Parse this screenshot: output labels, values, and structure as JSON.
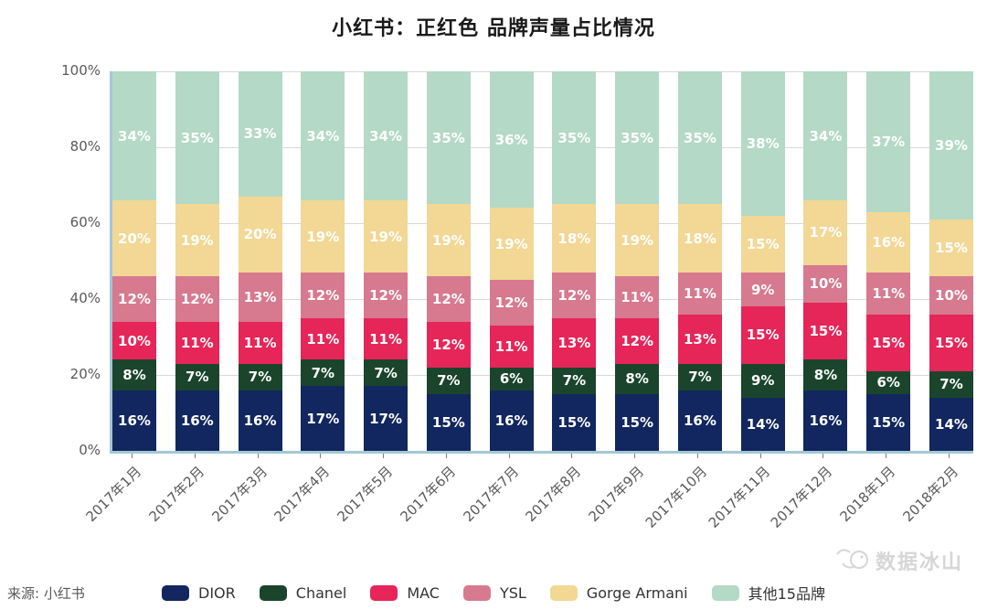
{
  "title": "小红书：正红色 品牌声量占比情况",
  "source": "来源: 小红书",
  "watermark": "数据冰山",
  "colors": {
    "axis": "#a3c7d6",
    "gridline": "#d9d9d9",
    "tick_text": "#595959",
    "segment_label": "#ffffff"
  },
  "chart_data": {
    "type": "bar",
    "stacked": true,
    "percent_total": true,
    "title": "小红书：正红色 品牌声量占比情况",
    "xlabel": "",
    "ylabel": "",
    "ylim": [
      0,
      100
    ],
    "grid": true,
    "legend_position": "bottom",
    "y_ticks": [
      "0%",
      "20%",
      "40%",
      "60%",
      "80%",
      "100%"
    ],
    "categories": [
      "2017年1月",
      "2017年2月",
      "2017年3月",
      "2017年4月",
      "2017年5月",
      "2017年6月",
      "2017年7月",
      "2017年8月",
      "2017年9月",
      "2017年10月",
      "2017年11月",
      "2017年12月",
      "2018年1月",
      "2018年2月"
    ],
    "series": [
      {
        "name": "DIOR",
        "color": "#12275f",
        "values": [
          16,
          16,
          16,
          17,
          17,
          15,
          16,
          15,
          15,
          16,
          14,
          16,
          15,
          14
        ]
      },
      {
        "name": "Chanel",
        "color": "#1a452c",
        "values": [
          8,
          7,
          7,
          7,
          7,
          7,
          6,
          7,
          8,
          7,
          9,
          8,
          6,
          7
        ]
      },
      {
        "name": "MAC",
        "color": "#e62558",
        "values": [
          10,
          11,
          11,
          11,
          11,
          12,
          11,
          13,
          12,
          13,
          15,
          15,
          15,
          15
        ]
      },
      {
        "name": "YSL",
        "color": "#d7798f",
        "values": [
          12,
          12,
          13,
          12,
          12,
          12,
          12,
          12,
          11,
          11,
          9,
          10,
          11,
          10
        ]
      },
      {
        "name": "Gorge Armani",
        "color": "#f2d795",
        "values": [
          20,
          19,
          20,
          19,
          19,
          19,
          19,
          18,
          19,
          18,
          15,
          17,
          16,
          15
        ]
      },
      {
        "name": "其他15品牌",
        "color": "#b4d9c6",
        "values": [
          34,
          35,
          33,
          34,
          34,
          35,
          36,
          35,
          35,
          35,
          38,
          34,
          37,
          39
        ]
      }
    ]
  }
}
